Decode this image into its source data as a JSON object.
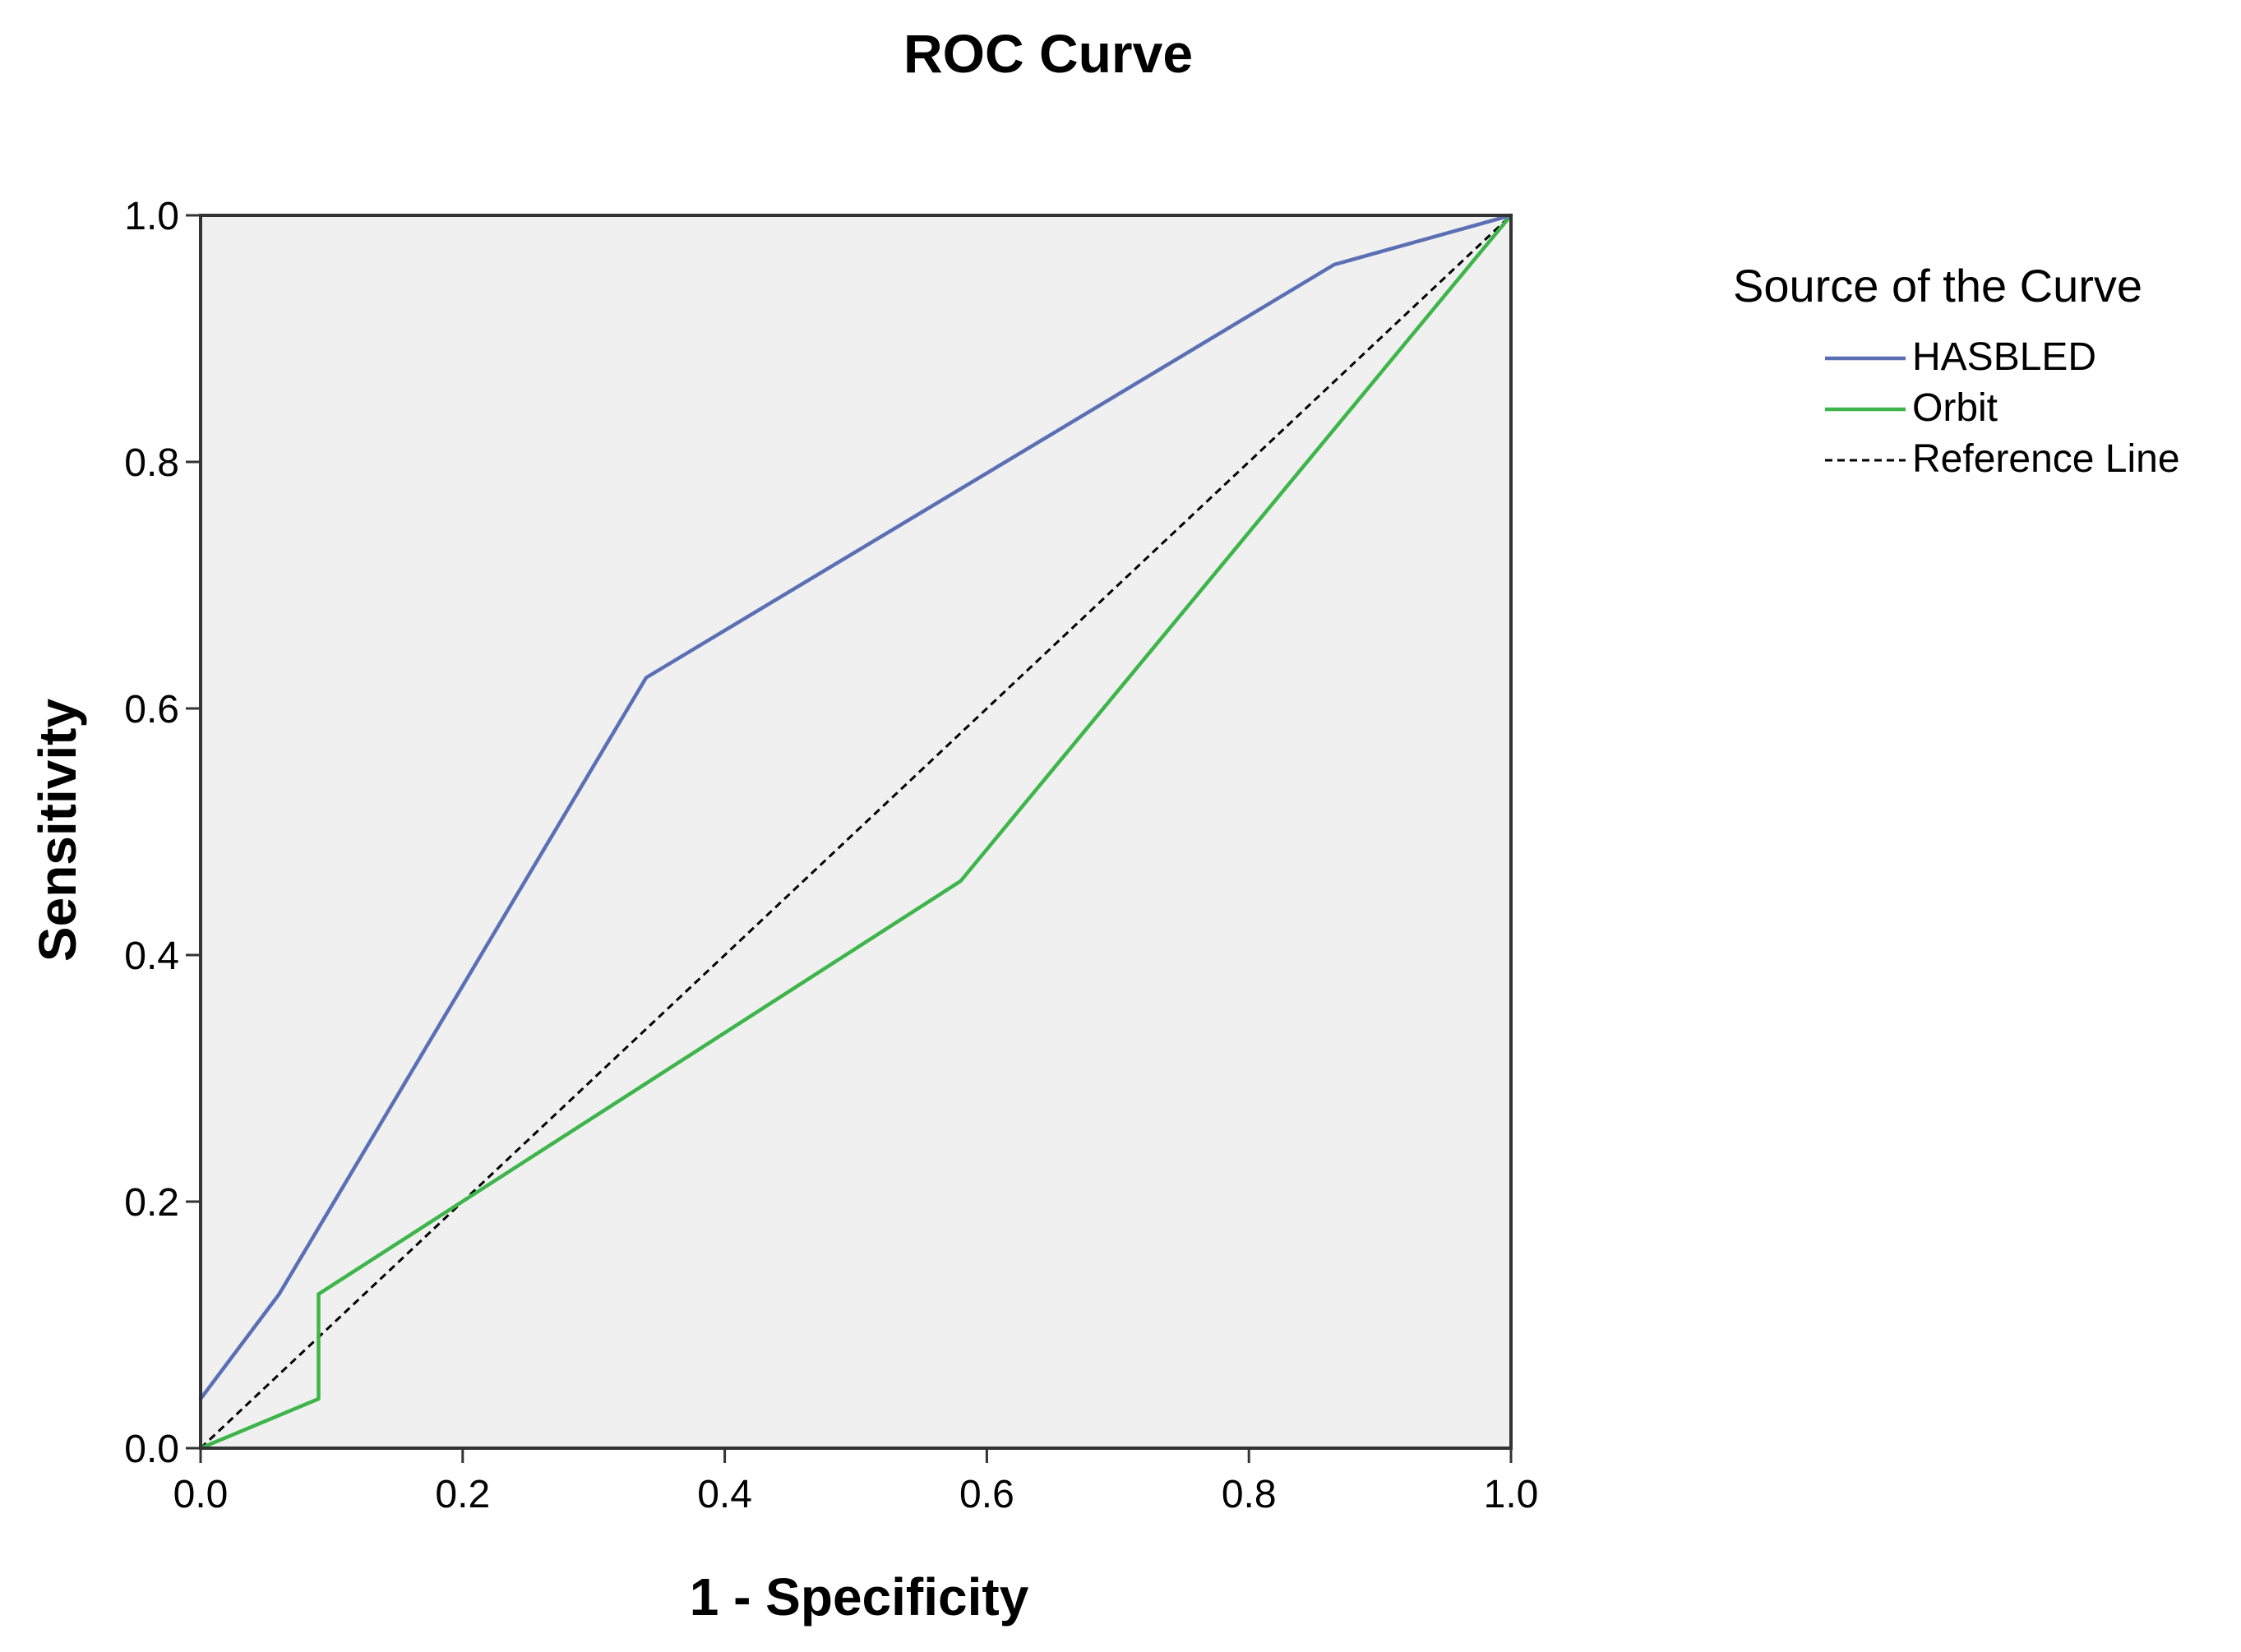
{
  "chart_data": {
    "type": "line",
    "title": "ROC Curve",
    "xlabel": "1 - Specificity",
    "ylabel": "Sensitivity",
    "xlim": [
      0,
      1
    ],
    "ylim": [
      0,
      1
    ],
    "xticks": [
      "0.0",
      "0.2",
      "0.4",
      "0.6",
      "0.8",
      "1.0"
    ],
    "yticks": [
      "0.0",
      "0.2",
      "0.4",
      "0.6",
      "0.8",
      "1.0"
    ],
    "grid": false,
    "legend": {
      "title": "Source of the Curve",
      "placement": "right",
      "entries": [
        "HASBLED",
        "Orbit",
        "Reference Line"
      ]
    },
    "series": [
      {
        "name": "HASBLED",
        "color": "#5b6fb5",
        "style": "solid",
        "points": [
          [
            0.0,
            0.04
          ],
          [
            0.06,
            0.125
          ],
          [
            0.34,
            0.625
          ],
          [
            0.865,
            0.96
          ],
          [
            1.0,
            1.0
          ]
        ]
      },
      {
        "name": "Orbit",
        "color": "#3db54a",
        "style": "solid",
        "points": [
          [
            0.0,
            0.0
          ],
          [
            0.09,
            0.04
          ],
          [
            0.09,
            0.125
          ],
          [
            0.58,
            0.46
          ],
          [
            1.0,
            1.0
          ]
        ]
      },
      {
        "name": "Reference Line",
        "color": "#000000",
        "style": "dashed",
        "points": [
          [
            0.0,
            0.0
          ],
          [
            1.0,
            1.0
          ]
        ]
      }
    ],
    "plot_background": "#f0f0f0"
  }
}
